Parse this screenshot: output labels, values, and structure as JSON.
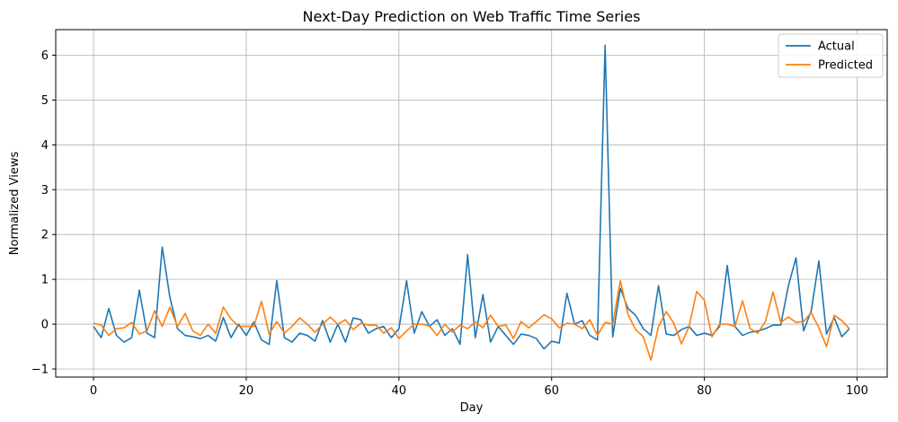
{
  "chart_data": {
    "type": "line",
    "title": "Next-Day Prediction on Web Traffic Time Series",
    "xlabel": "Day",
    "ylabel": "Normalized Views",
    "xlim": [
      -4.95,
      103.95
    ],
    "ylim": [
      -1.18,
      6.57
    ],
    "xticks": [
      0,
      20,
      40,
      60,
      80,
      100
    ],
    "yticks": [
      -1,
      0,
      1,
      2,
      3,
      4,
      5,
      6
    ],
    "xtick_labels": [
      "0",
      "20",
      "40",
      "60",
      "80",
      "100"
    ],
    "ytick_labels": [
      "−1",
      "0",
      "1",
      "2",
      "3",
      "4",
      "5",
      "6"
    ],
    "grid": true,
    "legend_position": "top-right",
    "series": [
      {
        "name": "Actual",
        "color": "#1f77b4",
        "values": [
          -0.05,
          -0.3,
          0.35,
          -0.25,
          -0.4,
          -0.3,
          0.76,
          -0.2,
          -0.3,
          1.72,
          0.6,
          -0.1,
          -0.25,
          -0.28,
          -0.32,
          -0.25,
          -0.38,
          0.15,
          -0.3,
          0.0,
          -0.25,
          0.05,
          -0.35,
          -0.45,
          0.97,
          -0.3,
          -0.4,
          -0.2,
          -0.25,
          -0.38,
          0.08,
          -0.4,
          0.0,
          -0.4,
          0.14,
          0.1,
          -0.2,
          -0.1,
          -0.05,
          -0.3,
          -0.1,
          0.97,
          -0.2,
          0.28,
          -0.05,
          0.1,
          -0.25,
          -0.1,
          -0.45,
          1.55,
          -0.3,
          0.66,
          -0.4,
          -0.05,
          -0.25,
          -0.45,
          -0.22,
          -0.25,
          -0.32,
          -0.55,
          -0.38,
          -0.42,
          0.69,
          0.0,
          0.08,
          -0.25,
          -0.35,
          6.22,
          -0.28,
          0.8,
          0.35,
          0.2,
          -0.1,
          -0.25,
          0.86,
          -0.22,
          -0.25,
          -0.12,
          -0.05,
          -0.25,
          -0.2,
          -0.25,
          -0.05,
          1.31,
          -0.05,
          -0.25,
          -0.18,
          -0.15,
          -0.1,
          -0.02,
          -0.02,
          0.85,
          1.48,
          -0.15,
          0.3,
          1.41,
          -0.22,
          0.15,
          -0.28,
          -0.1
        ],
        "x": [
          0,
          1,
          2,
          3,
          4,
          5,
          6,
          7,
          8,
          9,
          10,
          11,
          12,
          13,
          14,
          15,
          16,
          17,
          18,
          19,
          20,
          21,
          22,
          23,
          24,
          25,
          26,
          27,
          28,
          29,
          30,
          31,
          32,
          33,
          34,
          35,
          36,
          37,
          38,
          39,
          40,
          41,
          42,
          43,
          44,
          45,
          46,
          47,
          48,
          49,
          50,
          51,
          52,
          53,
          54,
          55,
          56,
          57,
          58,
          59,
          60,
          61,
          62,
          63,
          64,
          65,
          66,
          67,
          68,
          69,
          70,
          71,
          72,
          73,
          74,
          75,
          76,
          77,
          78,
          79,
          80,
          81,
          82,
          83,
          84,
          85,
          86,
          87,
          88,
          89,
          90,
          91,
          92,
          93,
          94,
          95,
          96,
          97,
          98,
          99
        ]
      },
      {
        "name": "Predicted",
        "color": "#ff7f0e",
        "values": [
          0.02,
          -0.02,
          -0.25,
          -0.1,
          -0.08,
          0.04,
          -0.22,
          -0.15,
          0.3,
          -0.05,
          0.38,
          -0.05,
          0.24,
          -0.15,
          -0.25,
          0.0,
          -0.2,
          0.38,
          0.12,
          -0.05,
          -0.05,
          -0.05,
          0.51,
          -0.22,
          0.06,
          -0.2,
          -0.05,
          0.14,
          0.0,
          -0.18,
          0.0,
          0.16,
          0.0,
          0.1,
          -0.12,
          0.02,
          -0.02,
          -0.02,
          -0.2,
          -0.08,
          -0.32,
          -0.15,
          0.0,
          0.0,
          -0.04,
          -0.25,
          0.0,
          -0.18,
          -0.02,
          -0.1,
          0.05,
          -0.08,
          0.2,
          -0.05,
          -0.02,
          -0.32,
          0.06,
          -0.08,
          0.06,
          0.21,
          0.12,
          -0.08,
          0.02,
          0.0,
          -0.1,
          0.1,
          -0.25,
          0.04,
          0.0,
          0.97,
          0.22,
          -0.12,
          -0.28,
          -0.8,
          -0.05,
          0.28,
          0.02,
          -0.44,
          -0.05,
          0.73,
          0.54,
          -0.28,
          0.0,
          0.0,
          -0.05,
          0.52,
          -0.1,
          -0.2,
          0.06,
          0.72,
          0.04,
          0.16,
          0.04,
          0.06,
          0.26,
          -0.08,
          -0.5,
          0.2,
          0.08,
          -0.1
        ],
        "x": [
          0,
          1,
          2,
          3,
          4,
          5,
          6,
          7,
          8,
          9,
          10,
          11,
          12,
          13,
          14,
          15,
          16,
          17,
          18,
          19,
          20,
          21,
          22,
          23,
          24,
          25,
          26,
          27,
          28,
          29,
          30,
          31,
          32,
          33,
          34,
          35,
          36,
          37,
          38,
          39,
          40,
          41,
          42,
          43,
          44,
          45,
          46,
          47,
          48,
          49,
          50,
          51,
          52,
          53,
          54,
          55,
          56,
          57,
          58,
          59,
          60,
          61,
          62,
          63,
          64,
          65,
          66,
          67,
          68,
          69,
          70,
          71,
          72,
          73,
          74,
          75,
          76,
          77,
          78,
          79,
          80,
          81,
          82,
          83,
          84,
          85,
          86,
          87,
          88,
          89,
          90,
          91,
          92,
          93,
          94,
          95,
          96,
          97,
          98,
          99
        ]
      }
    ]
  }
}
